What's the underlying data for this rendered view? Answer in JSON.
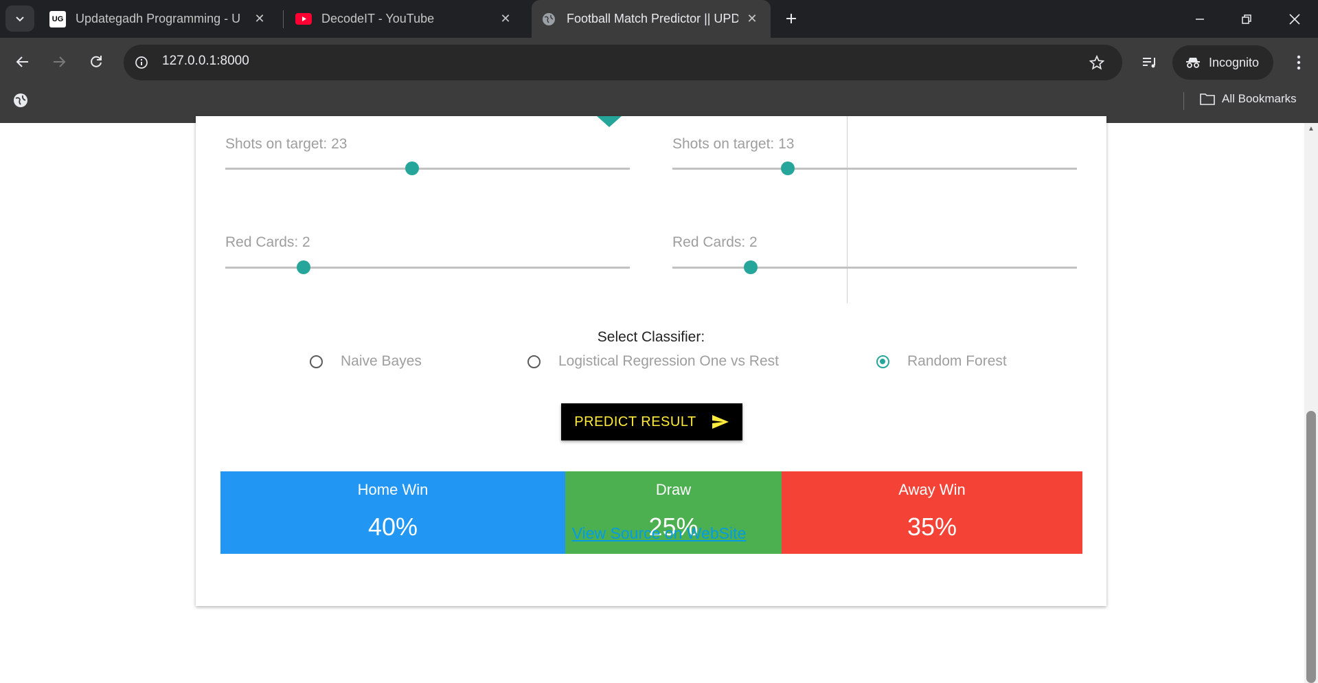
{
  "browser": {
    "tabs": [
      {
        "favicon": "UG",
        "title": "Updategadh Programming - Up"
      },
      {
        "favicon": "youtube-icon",
        "title": "DecodeIT - YouTube"
      },
      {
        "favicon": "globe-icon",
        "title": "Football Match Predictor || UPD"
      }
    ],
    "url": "127.0.0.1:8000",
    "incognito_label": "Incognito",
    "bookmarks_label": "All Bookmarks"
  },
  "home": {
    "shots_label": "Shots on target: 23",
    "shots_value": 23,
    "red_label": "Red Cards: 2",
    "red_value": 2
  },
  "away": {
    "shots_label": "Shots on target: 13",
    "shots_value": 13,
    "red_label": "Red Cards: 2",
    "red_value": 2
  },
  "classifier": {
    "title": "Select Classifier:",
    "options": [
      "Naive Bayes",
      "Logistical Regression One vs Rest",
      "Random Forest"
    ],
    "selected": "Random Forest"
  },
  "predict_label": "PREDICT RESULT",
  "results": [
    {
      "label": "Home Win",
      "value": "40%",
      "color": "#2196f3"
    },
    {
      "label": "Draw",
      "value": "25%",
      "color": "#4caf50"
    },
    {
      "label": "Away Win",
      "value": "35%",
      "color": "#f44336"
    }
  ],
  "source_link": "View Source on WebSite"
}
